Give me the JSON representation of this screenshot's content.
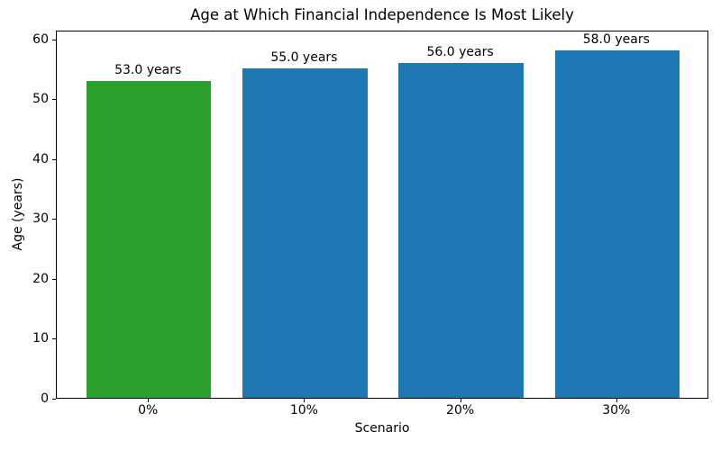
{
  "chart_data": {
    "type": "bar",
    "title": "Age at Which Financial Independence Is Most Likely",
    "xlabel": "Scenario",
    "ylabel": "Age (years)",
    "categories": [
      "0%",
      "10%",
      "20%",
      "30%"
    ],
    "values": [
      53.0,
      55.0,
      56.0,
      58.0
    ],
    "bar_labels": [
      "53.0 years",
      "55.0 years",
      "56.0 years",
      "58.0 years"
    ],
    "bar_colors": [
      "#2ca02c",
      "#1f77b4",
      "#1f77b4",
      "#1f77b4"
    ],
    "ylim": [
      0,
      61.5
    ],
    "yticks": [
      0,
      10,
      20,
      30,
      40,
      50,
      60
    ],
    "xlim": [
      -0.59,
      3.59
    ],
    "bar_width_fraction": 0.8,
    "grid": false,
    "legend": null,
    "background_color": "#ffffff",
    "text_color": "#000000",
    "spine_color": "#000000"
  }
}
